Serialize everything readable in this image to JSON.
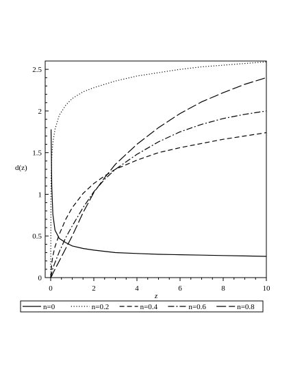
{
  "chart_data": {
    "type": "line",
    "xlabel": "z",
    "ylabel": "d(z)",
    "xlim": [
      0,
      10
    ],
    "ylim": [
      0,
      2.6
    ],
    "x_ticks": [
      0,
      2,
      4,
      6,
      8,
      10
    ],
    "y_ticks": [
      0,
      0.5,
      1,
      1.5,
      2,
      2.5
    ],
    "x_tick_labels": [
      "0",
      "2",
      "4",
      "6",
      "8",
      "10"
    ],
    "y_tick_labels": [
      "0",
      "0.5",
      "1",
      "1.5",
      "2",
      "2.5"
    ],
    "grid": false,
    "legend_position": "bottom",
    "series": [
      {
        "name": "n=0",
        "style": "solid",
        "x": [
          0.02,
          0.05,
          0.1,
          0.2,
          0.4,
          0.7,
          1,
          1.5,
          2,
          3,
          4,
          5,
          6,
          7,
          8,
          9,
          10
        ],
        "values": [
          1.78,
          1.1,
          0.76,
          0.57,
          0.47,
          0.42,
          0.38,
          0.35,
          0.33,
          0.3,
          0.29,
          0.28,
          0.275,
          0.27,
          0.265,
          0.26,
          0.255
        ]
      },
      {
        "name": "n=0.2",
        "style": "dotted",
        "x": [
          0,
          0.02,
          0.05,
          0.1,
          0.2,
          0.4,
          0.7,
          1,
          1.5,
          2,
          3,
          4,
          5,
          6,
          7,
          8,
          9,
          10
        ],
        "values": [
          0.0,
          1.18,
          1.45,
          1.62,
          1.78,
          1.95,
          2.07,
          2.15,
          2.23,
          2.28,
          2.36,
          2.42,
          2.46,
          2.5,
          2.53,
          2.55,
          2.57,
          2.59
        ]
      },
      {
        "name": "n=0.4",
        "style": "dashed",
        "x": [
          0,
          0.05,
          0.1,
          0.2,
          0.4,
          0.7,
          1,
          1.5,
          2,
          2.5,
          3,
          4,
          5,
          6,
          7,
          8,
          9,
          10
        ],
        "values": [
          0.0,
          0.17,
          0.26,
          0.37,
          0.52,
          0.7,
          0.84,
          1.01,
          1.13,
          1.22,
          1.3,
          1.41,
          1.5,
          1.56,
          1.61,
          1.66,
          1.7,
          1.74
        ]
      },
      {
        "name": "n=0.6",
        "style": "dashdot",
        "x": [
          0,
          0.05,
          0.1,
          0.2,
          0.4,
          0.7,
          1,
          1.5,
          2,
          2.5,
          3,
          4,
          5,
          6,
          7,
          8,
          9,
          10
        ],
        "values": [
          0.0,
          0.06,
          0.11,
          0.18,
          0.31,
          0.48,
          0.62,
          0.84,
          1.03,
          1.18,
          1.3,
          1.48,
          1.63,
          1.75,
          1.84,
          1.91,
          1.96,
          2.0
        ]
      },
      {
        "name": "n=0.8",
        "style": "longdash",
        "x": [
          0,
          0.05,
          0.1,
          0.2,
          0.4,
          0.7,
          1,
          1.5,
          2,
          2.5,
          3,
          4,
          5,
          6,
          7,
          8,
          9,
          10
        ],
        "values": [
          0.0,
          0.02,
          0.05,
          0.1,
          0.2,
          0.35,
          0.5,
          0.78,
          1.02,
          1.2,
          1.36,
          1.6,
          1.8,
          1.97,
          2.11,
          2.22,
          2.32,
          2.4
        ]
      }
    ]
  }
}
